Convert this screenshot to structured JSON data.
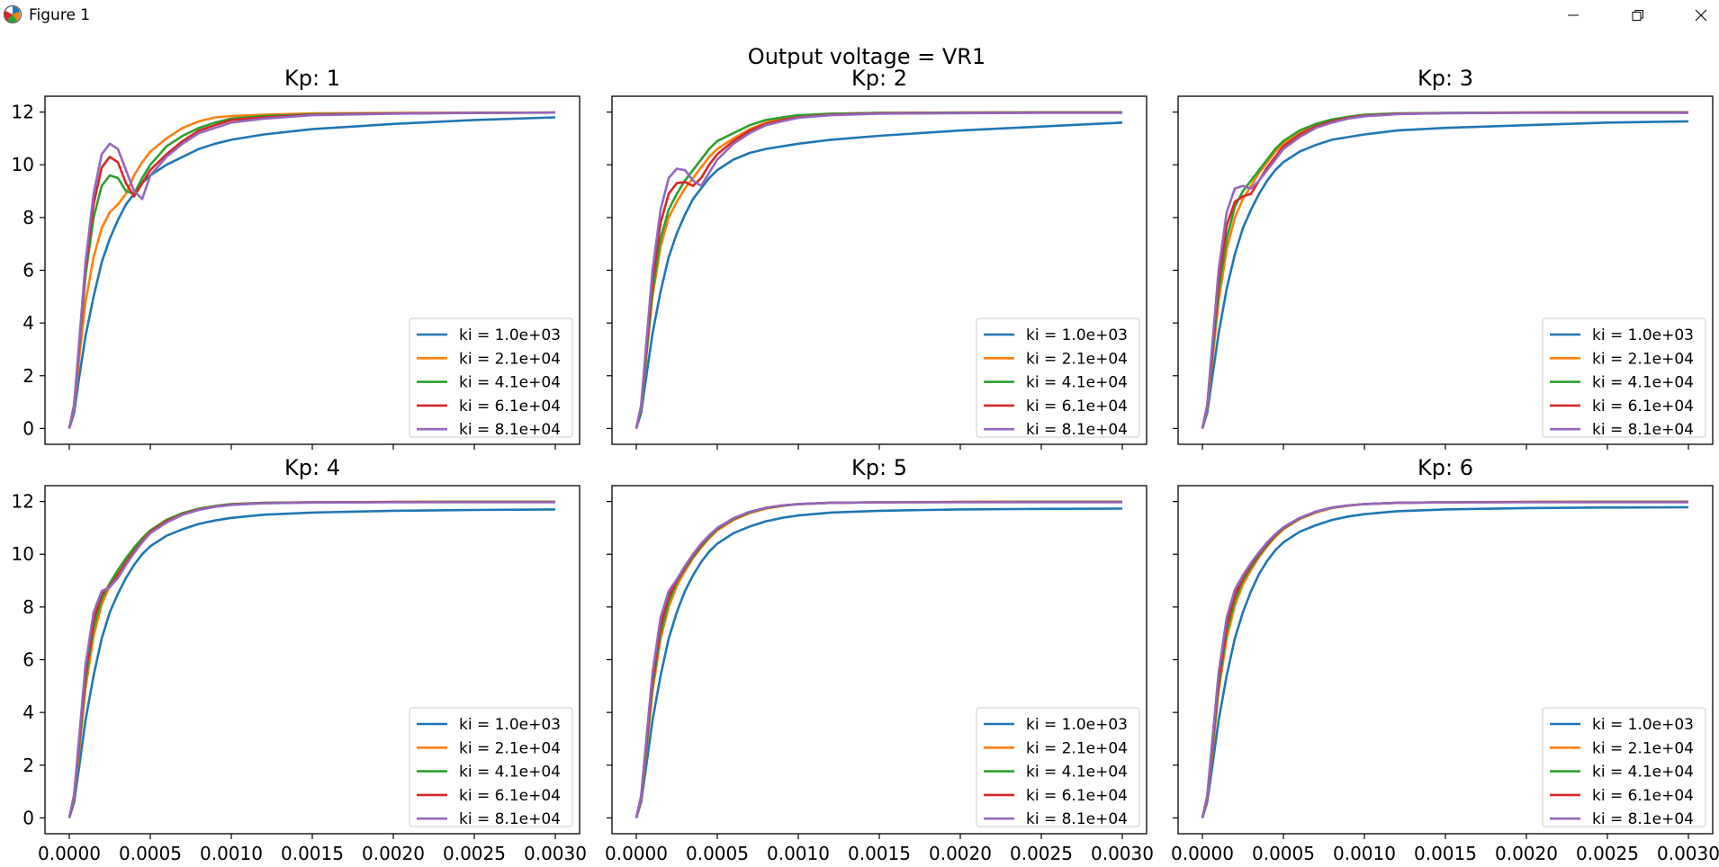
{
  "window": {
    "title": "Figure 1",
    "icons": [
      "matplotlib-logo-icon",
      "minimize-icon",
      "restore-icon",
      "close-icon"
    ]
  },
  "chart_data": {
    "suptitle": "Output voltage = VR1",
    "legend_placement": "lower right",
    "grid": false,
    "shared_x": true,
    "shared_y": true,
    "colors": [
      "#1f77b4",
      "#ff7f0e",
      "#2ca02c",
      "#d62728",
      "#9467bd"
    ],
    "legend_labels": [
      "ki = 1.0e+03",
      "ki = 2.1e+04",
      "ki = 4.1e+04",
      "ki = 6.1e+04",
      "ki = 8.1e+04"
    ],
    "xlim": [
      -0.00015,
      0.00315
    ],
    "ylim": [
      -0.6,
      12.6
    ],
    "xticks": [
      "0.0000",
      "0.0005",
      "0.0010",
      "0.0015",
      "0.0020",
      "0.0025",
      "0.0030"
    ],
    "yticks": [
      "0",
      "2",
      "4",
      "6",
      "8",
      "10",
      "12"
    ],
    "panels": [
      {
        "type": "line",
        "title": "Kp: 1",
        "x": [
          0,
          3e-05,
          6e-05,
          0.0001,
          0.00015,
          0.0002,
          0.00025,
          0.0003,
          0.00035,
          0.0004,
          0.00045,
          0.0005,
          0.0006,
          0.0007,
          0.0008,
          0.0009,
          0.001,
          0.0012,
          0.0015,
          0.002,
          0.0025,
          0.003
        ],
        "series": [
          {
            "values": [
              0,
              0.6,
              1.9,
              3.5,
              5.0,
              6.3,
              7.2,
              7.9,
              8.5,
              8.9,
              9.3,
              9.6,
              10.0,
              10.3,
              10.6,
              10.8,
              10.95,
              11.15,
              11.35,
              11.55,
              11.7,
              11.8
            ]
          },
          {
            "values": [
              0,
              0.8,
              2.6,
              4.8,
              6.5,
              7.6,
              8.2,
              8.5,
              8.9,
              9.6,
              10.1,
              10.5,
              11.0,
              11.4,
              11.65,
              11.8,
              11.85,
              11.9,
              11.95,
              11.97,
              11.98,
              11.98
            ]
          },
          {
            "values": [
              0,
              0.9,
              3.0,
              5.8,
              8.0,
              9.2,
              9.6,
              9.5,
              9.0,
              8.9,
              9.5,
              10.0,
              10.7,
              11.1,
              11.4,
              11.6,
              11.75,
              11.85,
              11.92,
              11.95,
              11.97,
              11.98
            ]
          },
          {
            "values": [
              0,
              0.9,
              3.1,
              6.1,
              8.5,
              9.9,
              10.3,
              10.1,
              9.3,
              8.8,
              9.3,
              9.8,
              10.4,
              10.9,
              11.3,
              11.5,
              11.7,
              11.8,
              11.9,
              11.95,
              11.97,
              11.98
            ]
          },
          {
            "values": [
              0,
              0.9,
              3.2,
              6.3,
              8.9,
              10.4,
              10.8,
              10.6,
              9.8,
              9.0,
              8.7,
              9.6,
              10.3,
              10.8,
              11.2,
              11.4,
              11.6,
              11.75,
              11.88,
              11.94,
              11.97,
              11.98
            ]
          }
        ]
      },
      {
        "type": "line",
        "title": "Kp: 2",
        "x": [
          0,
          3e-05,
          6e-05,
          0.0001,
          0.00015,
          0.0002,
          0.00025,
          0.0003,
          0.00035,
          0.0004,
          0.00045,
          0.0005,
          0.0006,
          0.0007,
          0.0008,
          0.0009,
          0.001,
          0.0012,
          0.0015,
          0.002,
          0.0025,
          0.003
        ],
        "series": [
          {
            "values": [
              0,
              0.6,
              1.9,
              3.6,
              5.2,
              6.5,
              7.4,
              8.1,
              8.7,
              9.1,
              9.5,
              9.8,
              10.2,
              10.45,
              10.6,
              10.7,
              10.8,
              10.95,
              11.1,
              11.3,
              11.45,
              11.6
            ]
          },
          {
            "values": [
              0,
              0.8,
              2.6,
              5.0,
              6.9,
              8.0,
              8.6,
              9.1,
              9.5,
              9.9,
              10.3,
              10.6,
              11.0,
              11.35,
              11.6,
              11.75,
              11.85,
              11.93,
              11.97,
              11.98,
              11.99,
              11.99
            ]
          },
          {
            "values": [
              0,
              0.8,
              2.7,
              5.2,
              7.2,
              8.3,
              8.9,
              9.4,
              9.8,
              10.2,
              10.6,
              10.9,
              11.2,
              11.5,
              11.7,
              11.8,
              11.88,
              11.94,
              11.97,
              11.98,
              11.99,
              11.99
            ]
          },
          {
            "values": [
              0,
              0.85,
              2.9,
              5.6,
              7.8,
              8.9,
              9.3,
              9.35,
              9.2,
              9.5,
              10.0,
              10.4,
              10.9,
              11.3,
              11.55,
              11.7,
              11.8,
              11.9,
              11.95,
              11.97,
              11.98,
              11.98
            ]
          },
          {
            "values": [
              0,
              0.9,
              3.1,
              6.0,
              8.3,
              9.5,
              9.85,
              9.8,
              9.4,
              9.2,
              9.7,
              10.2,
              10.8,
              11.2,
              11.5,
              11.65,
              11.78,
              11.88,
              11.94,
              11.96,
              11.97,
              11.97
            ]
          }
        ]
      },
      {
        "type": "line",
        "title": "Kp: 3",
        "x": [
          0,
          3e-05,
          6e-05,
          0.0001,
          0.00015,
          0.0002,
          0.00025,
          0.0003,
          0.00035,
          0.0004,
          0.00045,
          0.0005,
          0.0006,
          0.0007,
          0.0008,
          0.0009,
          0.001,
          0.0012,
          0.0015,
          0.002,
          0.0025,
          0.003
        ],
        "series": [
          {
            "values": [
              0,
              0.6,
              1.9,
              3.6,
              5.3,
              6.6,
              7.6,
              8.3,
              8.9,
              9.4,
              9.8,
              10.1,
              10.5,
              10.75,
              10.95,
              11.05,
              11.15,
              11.3,
              11.4,
              11.5,
              11.6,
              11.65
            ]
          },
          {
            "values": [
              0,
              0.75,
              2.5,
              4.8,
              6.8,
              8.0,
              8.7,
              9.2,
              9.7,
              10.1,
              10.5,
              10.8,
              11.2,
              11.5,
              11.7,
              11.8,
              11.88,
              11.94,
              11.97,
              11.98,
              11.99,
              11.99
            ]
          },
          {
            "values": [
              0,
              0.8,
              2.7,
              5.2,
              7.2,
              8.4,
              9.0,
              9.4,
              9.8,
              10.2,
              10.6,
              10.9,
              11.3,
              11.55,
              11.72,
              11.82,
              11.9,
              11.95,
              11.97,
              11.98,
              11.99,
              11.99
            ]
          },
          {
            "values": [
              0,
              0.85,
              2.9,
              5.6,
              7.7,
              8.6,
              8.8,
              8.9,
              9.4,
              9.9,
              10.3,
              10.7,
              11.15,
              11.45,
              11.65,
              11.78,
              11.86,
              11.93,
              11.96,
              11.98,
              11.98,
              11.98
            ]
          },
          {
            "values": [
              0,
              0.9,
              3.1,
              6.0,
              8.2,
              9.1,
              9.2,
              9.1,
              9.4,
              9.8,
              10.2,
              10.6,
              11.05,
              11.4,
              11.6,
              11.75,
              11.84,
              11.92,
              11.96,
              11.97,
              11.97,
              11.97
            ]
          }
        ]
      },
      {
        "type": "line",
        "title": "Kp: 4",
        "x": [
          0,
          3e-05,
          6e-05,
          0.0001,
          0.00015,
          0.0002,
          0.00025,
          0.0003,
          0.00035,
          0.0004,
          0.00045,
          0.0005,
          0.0006,
          0.0007,
          0.0008,
          0.0009,
          0.001,
          0.0012,
          0.0015,
          0.002,
          0.0025,
          0.003
        ],
        "series": [
          {
            "values": [
              0,
              0.6,
              1.9,
              3.7,
              5.4,
              6.8,
              7.8,
              8.5,
              9.1,
              9.6,
              10.0,
              10.3,
              10.7,
              10.95,
              11.15,
              11.28,
              11.38,
              11.5,
              11.58,
              11.65,
              11.68,
              11.7
            ]
          },
          {
            "values": [
              0,
              0.75,
              2.5,
              4.9,
              6.9,
              8.1,
              8.8,
              9.3,
              9.8,
              10.2,
              10.6,
              10.9,
              11.3,
              11.55,
              11.72,
              11.82,
              11.9,
              11.95,
              11.97,
              11.98,
              11.99,
              11.99
            ]
          },
          {
            "values": [
              0,
              0.8,
              2.7,
              5.2,
              7.2,
              8.3,
              8.9,
              9.4,
              9.85,
              10.25,
              10.6,
              10.9,
              11.3,
              11.56,
              11.73,
              11.83,
              11.9,
              11.95,
              11.97,
              11.98,
              11.99,
              11.99
            ]
          },
          {
            "values": [
              0,
              0.85,
              2.85,
              5.5,
              7.5,
              8.5,
              8.8,
              9.2,
              9.7,
              10.1,
              10.5,
              10.85,
              11.25,
              11.52,
              11.7,
              11.81,
              11.88,
              11.94,
              11.97,
              11.98,
              11.98,
              11.98
            ]
          },
          {
            "values": [
              0,
              0.9,
              3.0,
              5.8,
              7.8,
              8.6,
              8.75,
              9.1,
              9.6,
              10.05,
              10.45,
              10.8,
              11.2,
              11.5,
              11.68,
              11.8,
              11.87,
              11.93,
              11.96,
              11.97,
              11.97,
              11.97
            ]
          }
        ]
      },
      {
        "type": "line",
        "title": "Kp: 5",
        "x": [
          0,
          3e-05,
          6e-05,
          0.0001,
          0.00015,
          0.0002,
          0.00025,
          0.0003,
          0.00035,
          0.0004,
          0.00045,
          0.0005,
          0.0006,
          0.0007,
          0.0008,
          0.0009,
          0.001,
          0.0012,
          0.0015,
          0.002,
          0.0025,
          0.003
        ],
        "series": [
          {
            "values": [
              0,
              0.6,
              1.9,
              3.7,
              5.4,
              6.8,
              7.8,
              8.6,
              9.2,
              9.7,
              10.1,
              10.4,
              10.8,
              11.05,
              11.25,
              11.38,
              11.47,
              11.58,
              11.65,
              11.7,
              11.72,
              11.73
            ]
          },
          {
            "values": [
              0,
              0.7,
              2.4,
              4.8,
              6.8,
              8.0,
              8.8,
              9.35,
              9.85,
              10.25,
              10.6,
              10.9,
              11.3,
              11.56,
              11.73,
              11.83,
              11.9,
              11.95,
              11.97,
              11.98,
              11.99,
              11.99
            ]
          },
          {
            "values": [
              0,
              0.75,
              2.55,
              5.0,
              7.0,
              8.2,
              8.95,
              9.45,
              9.9,
              10.3,
              10.65,
              10.95,
              11.33,
              11.58,
              11.75,
              11.84,
              11.9,
              11.95,
              11.97,
              11.98,
              11.99,
              11.99
            ]
          },
          {
            "values": [
              0,
              0.8,
              2.7,
              5.2,
              7.3,
              8.4,
              9.0,
              9.5,
              9.95,
              10.35,
              10.7,
              10.98,
              11.35,
              11.6,
              11.76,
              11.85,
              11.9,
              11.95,
              11.97,
              11.98,
              11.98,
              11.98
            ]
          },
          {
            "values": [
              0,
              0.85,
              2.85,
              5.5,
              7.6,
              8.6,
              9.05,
              9.55,
              10.0,
              10.4,
              10.72,
              11.0,
              11.37,
              11.61,
              11.76,
              11.85,
              11.9,
              11.95,
              11.97,
              11.97,
              11.97,
              11.97
            ]
          }
        ]
      },
      {
        "type": "line",
        "title": "Kp: 6",
        "x": [
          0,
          3e-05,
          6e-05,
          0.0001,
          0.00015,
          0.0002,
          0.00025,
          0.0003,
          0.00035,
          0.0004,
          0.00045,
          0.0005,
          0.0006,
          0.0007,
          0.0008,
          0.0009,
          0.001,
          0.0012,
          0.0015,
          0.002,
          0.0025,
          0.003
        ],
        "series": [
          {
            "values": [
              0,
              0.6,
              1.9,
              3.7,
              5.4,
              6.8,
              7.8,
              8.6,
              9.25,
              9.75,
              10.15,
              10.45,
              10.85,
              11.1,
              11.3,
              11.43,
              11.52,
              11.63,
              11.7,
              11.75,
              11.77,
              11.78
            ]
          },
          {
            "values": [
              0,
              0.7,
              2.4,
              4.8,
              6.8,
              8.05,
              8.85,
              9.4,
              9.9,
              10.3,
              10.65,
              10.95,
              11.33,
              11.58,
              11.75,
              11.84,
              11.9,
              11.95,
              11.97,
              11.98,
              11.99,
              11.99
            ]
          },
          {
            "values": [
              0,
              0.75,
              2.55,
              5.0,
              7.05,
              8.25,
              9.0,
              9.5,
              9.95,
              10.35,
              10.7,
              10.98,
              11.35,
              11.6,
              11.76,
              11.85,
              11.9,
              11.95,
              11.97,
              11.98,
              11.99,
              11.99
            ]
          },
          {
            "values": [
              0,
              0.8,
              2.7,
              5.25,
              7.3,
              8.45,
              9.1,
              9.6,
              10.02,
              10.4,
              10.73,
              11.0,
              11.37,
              11.61,
              11.77,
              11.85,
              11.9,
              11.95,
              11.97,
              11.98,
              11.98,
              11.98
            ]
          },
          {
            "values": [
              0,
              0.85,
              2.85,
              5.5,
              7.6,
              8.65,
              9.2,
              9.67,
              10.08,
              10.45,
              10.76,
              11.02,
              11.38,
              11.62,
              11.77,
              11.85,
              11.9,
              11.95,
              11.97,
              11.97,
              11.97,
              11.97
            ]
          }
        ]
      }
    ]
  }
}
